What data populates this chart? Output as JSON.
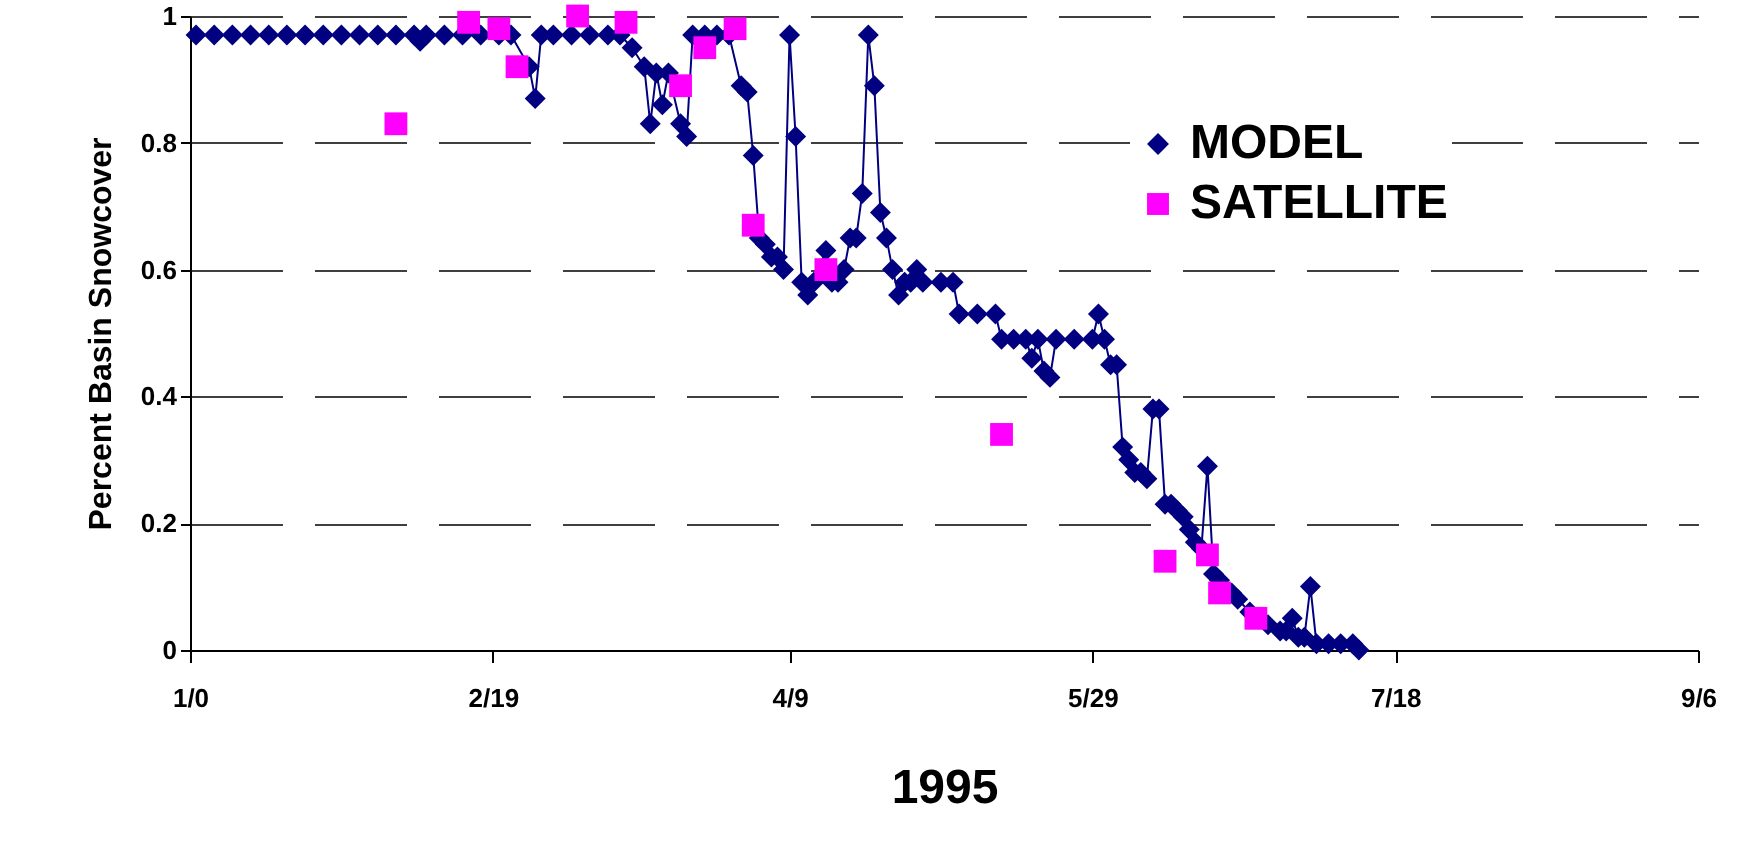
{
  "chart_data": {
    "type": "line",
    "xlabel": "1995",
    "ylabel": "Percent Basin Snowcover",
    "xlim": [
      "2000-12-31",
      "--09-06"
    ],
    "xticks": [
      {
        "value": "2000-12-31",
        "label": "1/0"
      },
      {
        "value": "--02-19",
        "label": "2/19"
      },
      {
        "value": "--04-09",
        "label": "4/9"
      },
      {
        "value": "--05-29",
        "label": "5/29"
      },
      {
        "value": "--07-18",
        "label": "7/18"
      },
      {
        "value": "--09-06",
        "label": "9/6"
      }
    ],
    "ylim": [
      0,
      1
    ],
    "yticks": [
      0,
      0.2,
      0.4,
      0.6,
      0.8,
      1
    ],
    "grid": "y",
    "legend": "top right",
    "series": [
      {
        "name": "MODEL",
        "type": "line",
        "marker": "diamond",
        "line_style": "solid",
        "color": "#000080",
        "x": [
          "--01-01",
          "--01-04",
          "--01-07",
          "--01-10",
          "--01-13",
          "--01-16",
          "--01-19",
          "--01-22",
          "--01-25",
          "--01-28",
          "--01-31",
          "--02-03",
          "--02-06",
          "--02-07",
          "--02-08",
          "--02-11",
          "--02-14",
          "--02-17",
          "--02-20",
          "--02-22",
          "--02-25",
          "--02-26",
          "--02-27",
          "--03-01",
          "--03-04",
          "--03-07",
          "--03-10",
          "--03-12",
          "--03-14",
          "--03-16",
          "--03-17",
          "--03-18",
          "--03-19",
          "--03-20",
          "--03-22",
          "--03-23",
          "--03-24",
          "--03-26",
          "--03-28",
          "--03-30",
          "--04-01",
          "--04-02",
          "--04-03",
          "--04-04",
          "--04-05",
          "--04-06",
          "--04-07",
          "--04-08",
          "--04-09",
          "--04-10",
          "--04-11",
          "--04-12",
          "--04-13",
          "--04-15",
          "--04-16",
          "--04-17",
          "--04-18",
          "--04-19",
          "--04-20",
          "--04-21",
          "--04-22",
          "--04-23",
          "--04-24",
          "--04-25",
          "--04-26",
          "--04-27",
          "--04-28",
          "--04-29",
          "--04-30",
          "--05-01",
          "--05-04",
          "--05-06",
          "--05-07",
          "--05-10",
          "--05-13",
          "--05-14",
          "--05-16",
          "--05-18",
          "--05-19",
          "--05-20",
          "--05-21",
          "--05-22",
          "--05-23",
          "--05-26",
          "--05-29",
          "--05-30",
          "--05-31",
          "--06-01",
          "--06-02",
          "--06-03",
          "--06-04",
          "--06-05",
          "--06-06",
          "--06-07",
          "--06-08",
          "--06-09",
          "--06-10",
          "--06-11",
          "--06-12",
          "--06-13",
          "--06-14",
          "--06-15",
          "--06-16",
          "--06-17",
          "--06-18",
          "--06-19",
          "--06-21",
          "--06-22",
          "--06-24",
          "--06-25",
          "--06-27",
          "--06-29",
          "--06-30",
          "--07-01",
          "--07-02",
          "--07-03",
          "--07-04",
          "--07-05",
          "--07-07",
          "--07-09",
          "--07-11",
          "--07-12"
        ],
        "values": [
          0.97,
          0.97,
          0.97,
          0.97,
          0.97,
          0.97,
          0.97,
          0.97,
          0.97,
          0.97,
          0.97,
          0.97,
          0.97,
          0.96,
          0.97,
          0.97,
          0.97,
          0.97,
          0.97,
          0.97,
          0.92,
          0.87,
          0.97,
          0.97,
          0.97,
          0.97,
          0.97,
          0.97,
          0.95,
          0.92,
          0.83,
          0.91,
          0.86,
          0.91,
          0.83,
          0.81,
          0.97,
          0.97,
          0.97,
          0.97,
          0.89,
          0.88,
          0.78,
          0.65,
          0.64,
          0.62,
          0.62,
          0.6,
          0.97,
          0.81,
          0.58,
          0.56,
          0.58,
          0.63,
          0.58,
          0.58,
          0.6,
          0.65,
          0.65,
          0.72,
          0.97,
          0.89,
          0.69,
          0.65,
          0.6,
          0.56,
          0.58,
          0.58,
          0.6,
          0.58,
          0.58,
          0.58,
          0.53,
          0.53,
          0.53,
          0.49,
          0.49,
          0.49,
          0.46,
          0.49,
          0.44,
          0.43,
          0.49,
          0.49,
          0.49,
          0.53,
          0.49,
          0.45,
          0.45,
          0.32,
          0.3,
          0.28,
          0.28,
          0.27,
          0.38,
          0.38,
          0.23,
          0.23,
          0.22,
          0.21,
          0.19,
          0.17,
          0.16,
          0.29,
          0.12,
          0.11,
          0.09,
          0.08,
          0.06,
          0.05,
          0.04,
          0.03,
          0.03,
          0.05,
          0.02,
          0.02,
          0.1,
          0.01,
          0.01,
          0.01,
          0.01,
          0
        ]
      },
      {
        "name": "SATELLITE",
        "type": "scatter",
        "marker": "square",
        "color": "#ff00ff",
        "x": [
          "--02-03",
          "--02-15",
          "--02-20",
          "--02-23",
          "--03-05",
          "--03-13",
          "--03-22",
          "--03-26",
          "--03-31",
          "--04-03",
          "--04-15",
          "--05-14",
          "--06-10",
          "--06-17",
          "--06-19",
          "--06-25"
        ],
        "values": [
          0.83,
          0.99,
          0.98,
          0.92,
          1,
          0.99,
          0.89,
          0.95,
          0.98,
          0.67,
          0.6,
          0.34,
          0.14,
          0.15,
          0.09,
          0.05
        ]
      }
    ]
  }
}
